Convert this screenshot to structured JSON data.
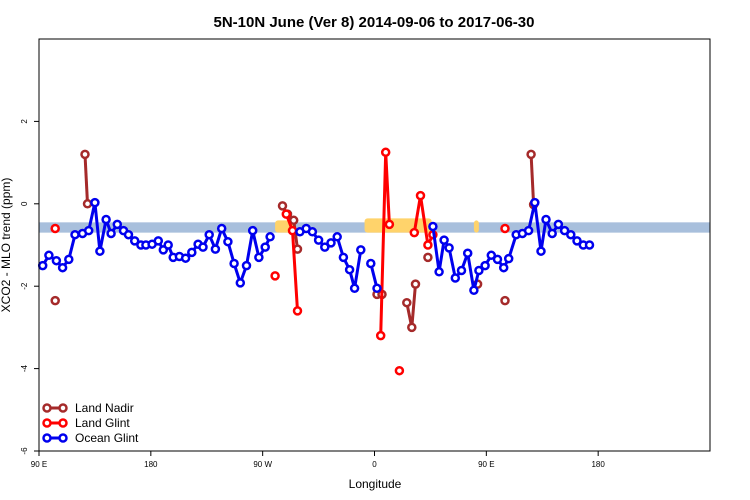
{
  "chart_data": {
    "type": "line",
    "title": "5N-10N June (Ver 8)   2014-09-06 to 2017-06-30",
    "xlabel": "Longitude",
    "ylabel": "XCO2 - MLO trend (ppm)",
    "xlim": [
      0,
      540
    ],
    "ylim": [
      -6,
      4
    ],
    "x_ticks": [
      {
        "value": 0,
        "label": "90 E"
      },
      {
        "value": 90,
        "label": "180"
      },
      {
        "value": 180,
        "label": "90 W"
      },
      {
        "value": 270,
        "label": "0"
      },
      {
        "value": 360,
        "label": "90 E"
      },
      {
        "value": 450,
        "label": "180"
      }
    ],
    "y_ticks": [
      {
        "value": -6,
        "label": "-6"
      },
      {
        "value": -4,
        "label": "-4"
      },
      {
        "value": -2,
        "label": "-2"
      },
      {
        "value": 0,
        "label": "0"
      },
      {
        "value": 2,
        "label": "2"
      }
    ],
    "band": {
      "y_min": -0.7,
      "y_max": -0.45,
      "color": "#a8bfdc"
    },
    "land_patches": [
      {
        "x_start": 190,
        "x_end": 206,
        "color": "#ffd36b"
      },
      {
        "x_start": 262,
        "x_end": 316,
        "color": "#ffd36b"
      },
      {
        "x_start": 350,
        "x_end": 354,
        "color": "#ffd36b"
      }
    ],
    "legend": {
      "placement": "bottom-left",
      "entries": [
        {
          "label": "Land Nadir",
          "color": "#a52a2a"
        },
        {
          "label": "Land Glint",
          "color": "#ff0000"
        },
        {
          "label": "Ocean Glint",
          "color": "#0000ee"
        }
      ]
    },
    "series": [
      {
        "name": "Land Nadir",
        "color": "#a52a2a",
        "segments": [
          [
            [
              13,
              -2.35
            ]
          ],
          [
            [
              37,
              1.2
            ],
            [
              39,
              0.0
            ]
          ],
          [
            [
              196,
              -0.05
            ],
            [
              200,
              -0.25
            ],
            [
              205,
              -0.4
            ],
            [
              208,
              -1.1
            ]
          ],
          [
            [
              272,
              -2.2
            ],
            [
              276,
              -2.2
            ]
          ],
          [
            [
              296,
              -2.4
            ],
            [
              300,
              -3.0
            ],
            [
              303,
              -1.95
            ]
          ],
          [
            [
              313,
              -1.3
            ]
          ],
          [
            [
              353,
              -1.95
            ]
          ],
          [
            [
              375,
              -2.35
            ]
          ],
          [
            [
              396,
              1.2
            ],
            [
              398,
              -0.02
            ]
          ]
        ]
      },
      {
        "name": "Land Glint",
        "color": "#ff0000",
        "segments": [
          [
            [
              13,
              -0.6
            ]
          ],
          [
            [
              190,
              -1.75
            ]
          ],
          [
            [
              199,
              -0.25
            ],
            [
              204,
              -0.65
            ],
            [
              208,
              -2.6
            ]
          ],
          [
            [
              275,
              -3.2
            ],
            [
              279,
              1.25
            ],
            [
              282,
              -0.5
            ]
          ],
          [
            [
              290,
              -4.05
            ]
          ],
          [
            [
              302,
              -0.7
            ],
            [
              307,
              0.2
            ],
            [
              313,
              -1.0
            ],
            [
              317,
              -0.75
            ]
          ],
          [
            [
              375,
              -0.6
            ]
          ]
        ]
      },
      {
        "name": "Ocean Glint",
        "color": "#0000ee",
        "segments": [
          [
            [
              3,
              -1.5
            ],
            [
              8,
              -1.25
            ],
            [
              14,
              -1.38
            ],
            [
              19,
              -1.55
            ],
            [
              24,
              -1.35
            ],
            [
              29,
              -0.75
            ],
            [
              35,
              -0.72
            ],
            [
              40,
              -0.65
            ],
            [
              45,
              0.03
            ],
            [
              49,
              -1.15
            ],
            [
              54,
              -0.38
            ],
            [
              58,
              -0.72
            ],
            [
              63,
              -0.5
            ],
            [
              68,
              -0.65
            ],
            [
              72,
              -0.75
            ],
            [
              77,
              -0.9
            ],
            [
              82,
              -1.0
            ],
            [
              86,
              -1.0
            ],
            [
              91,
              -0.98
            ],
            [
              96,
              -0.9
            ],
            [
              100,
              -1.12
            ],
            [
              104,
              -1.0
            ],
            [
              108,
              -1.3
            ],
            [
              113,
              -1.28
            ],
            [
              118,
              -1.32
            ],
            [
              123,
              -1.18
            ],
            [
              128,
              -0.98
            ],
            [
              132,
              -1.05
            ],
            [
              137,
              -0.75
            ],
            [
              142,
              -1.1
            ],
            [
              147,
              -0.6
            ],
            [
              152,
              -0.92
            ],
            [
              157,
              -1.45
            ],
            [
              162,
              -1.92
            ],
            [
              167,
              -1.5
            ],
            [
              172,
              -0.65
            ],
            [
              177,
              -1.3
            ],
            [
              182,
              -1.05
            ],
            [
              186,
              -0.8
            ]
          ],
          [
            [
              210,
              -0.68
            ],
            [
              215,
              -0.6
            ],
            [
              220,
              -0.68
            ],
            [
              225,
              -0.88
            ],
            [
              230,
              -1.05
            ],
            [
              235,
              -0.95
            ],
            [
              240,
              -0.8
            ],
            [
              245,
              -1.3
            ],
            [
              250,
              -1.6
            ],
            [
              254,
              -2.05
            ],
            [
              259,
              -1.12
            ]
          ],
          [
            [
              267,
              -1.45
            ],
            [
              272,
              -2.05
            ]
          ],
          [
            [
              317,
              -0.55
            ],
            [
              322,
              -1.65
            ],
            [
              326,
              -0.88
            ],
            [
              330,
              -1.07
            ],
            [
              335,
              -1.8
            ],
            [
              340,
              -1.62
            ],
            [
              345,
              -1.2
            ],
            [
              350,
              -2.1
            ],
            [
              354,
              -1.62
            ],
            [
              359,
              -1.5
            ],
            [
              364,
              -1.25
            ],
            [
              369,
              -1.35
            ],
            [
              374,
              -1.55
            ],
            [
              378,
              -1.33
            ],
            [
              384,
              -0.75
            ],
            [
              389,
              -0.72
            ],
            [
              394,
              -0.65
            ],
            [
              399,
              0.03
            ],
            [
              404,
              -1.15
            ],
            [
              408,
              -0.38
            ],
            [
              413,
              -0.72
            ],
            [
              418,
              -0.5
            ],
            [
              423,
              -0.65
            ],
            [
              428,
              -0.75
            ],
            [
              433,
              -0.9
            ],
            [
              438,
              -1.0
            ],
            [
              443,
              -1.0
            ]
          ]
        ]
      }
    ]
  }
}
